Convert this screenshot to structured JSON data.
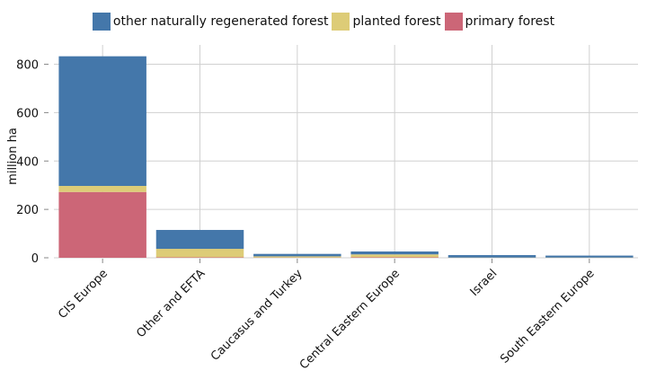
{
  "chart_data": {
    "type": "bar",
    "stacked": true,
    "categories": [
      "CIS Europe",
      "Other and EFTA",
      "Caucasus and Turkey",
      "Central Eastern Europe",
      "Israel",
      "South Eastern Europe"
    ],
    "series": [
      {
        "name": "primary forest",
        "color": "#cc6677",
        "values": [
          272,
          2,
          1,
          2,
          0,
          0
        ]
      },
      {
        "name": "planted forest",
        "color": "#ddcc77",
        "values": [
          25,
          35,
          5,
          12,
          1,
          1
        ]
      },
      {
        "name": "other naturally regenerated forest",
        "color": "#4477aa",
        "values": [
          536,
          78,
          10,
          12,
          10,
          8
        ]
      }
    ],
    "legend_order": [
      "other naturally regenerated forest",
      "planted forest",
      "primary forest"
    ],
    "title": "",
    "xlabel": "",
    "ylabel": "million ha",
    "ylim": [
      0,
      880
    ],
    "yticks": [
      0,
      200,
      400,
      600,
      800
    ],
    "grid": true,
    "legend_position": "top"
  }
}
